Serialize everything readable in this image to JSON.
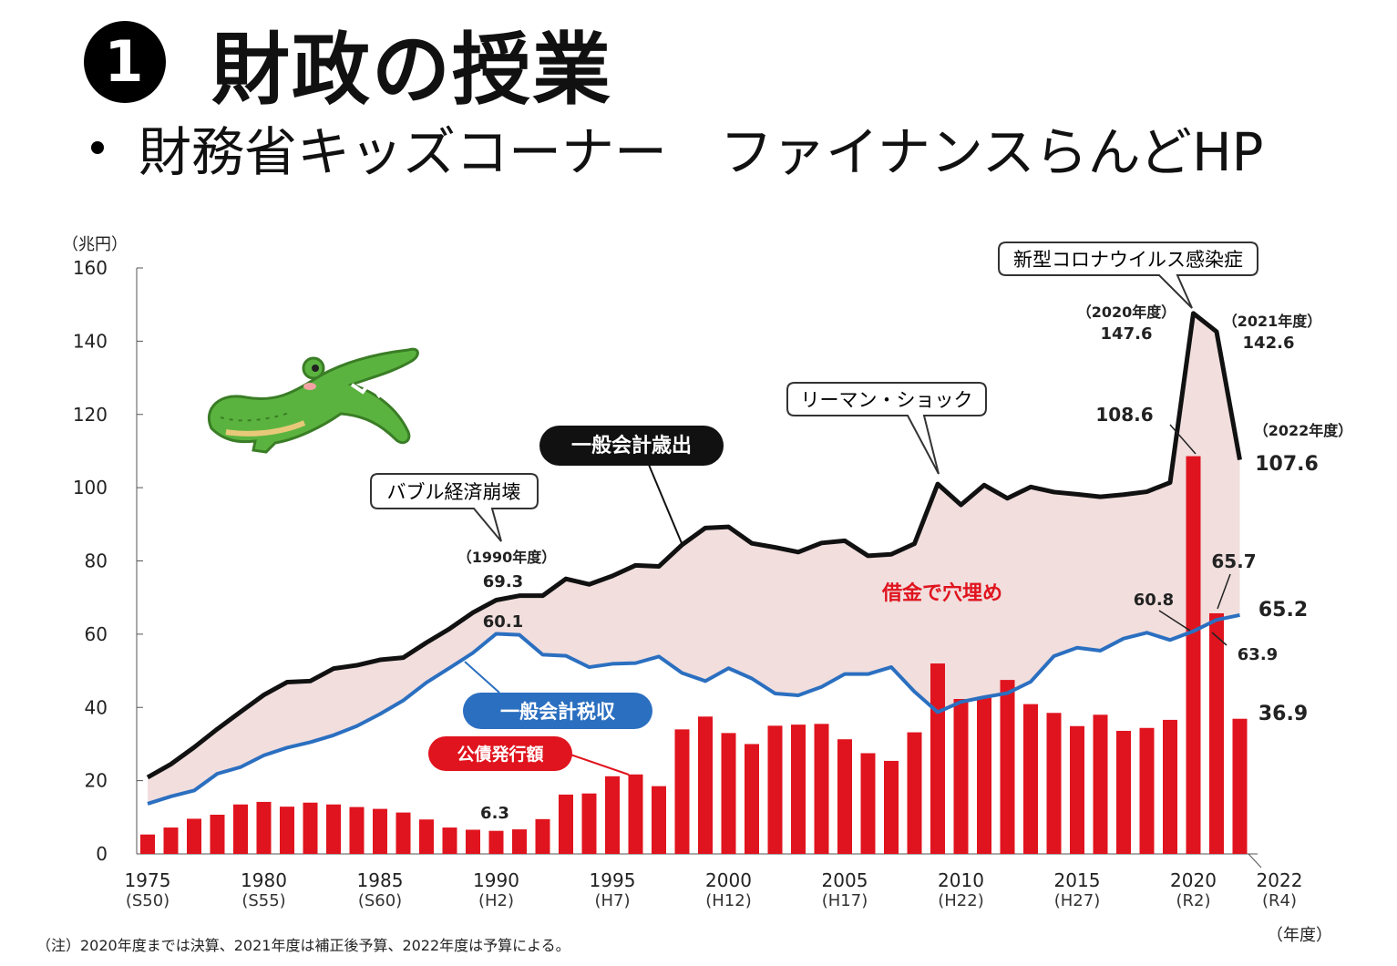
{
  "heading": {
    "number": "1",
    "title": "財政の授業"
  },
  "subheading": {
    "text": "財務省キッズコーナー　ファイナンスらんどHP"
  },
  "footnote": "（注）2020年度までは決算、2021年度は補正後予算、2022年度は予算による。",
  "colors": {
    "expenditure": "#111111",
    "tax": "#2b6fc0",
    "bonds": "#e0141e",
    "gap_fill": "#f1dedd",
    "crocodile": "#5bb33f"
  },
  "chart_data": {
    "type": "bar",
    "yunit": "（兆円）",
    "xunit": "（年度）",
    "ylim": [
      0,
      160
    ],
    "yticks": [
      0,
      20,
      40,
      60,
      80,
      100,
      120,
      140,
      160
    ],
    "x": [
      1975,
      1976,
      1977,
      1978,
      1979,
      1980,
      1981,
      1982,
      1983,
      1984,
      1985,
      1986,
      1987,
      1988,
      1989,
      1990,
      1991,
      1992,
      1993,
      1994,
      1995,
      1996,
      1997,
      1998,
      1999,
      2000,
      2001,
      2002,
      2003,
      2004,
      2005,
      2006,
      2007,
      2008,
      2009,
      2010,
      2011,
      2012,
      2013,
      2014,
      2015,
      2016,
      2017,
      2018,
      2019,
      2020,
      2021,
      2022
    ],
    "xticks": [
      {
        "year": 1975,
        "label": "1975",
        "era": "(S50)"
      },
      {
        "year": 1980,
        "label": "1980",
        "era": "(S55)"
      },
      {
        "year": 1985,
        "label": "1985",
        "era": "(S60)"
      },
      {
        "year": 1990,
        "label": "1990",
        "era": "(H2)"
      },
      {
        "year": 1995,
        "label": "1995",
        "era": "(H7)"
      },
      {
        "year": 2000,
        "label": "2000",
        "era": "(H12)"
      },
      {
        "year": 2005,
        "label": "2005",
        "era": "(H17)"
      },
      {
        "year": 2010,
        "label": "2010",
        "era": "(H22)"
      },
      {
        "year": 2015,
        "label": "2015",
        "era": "(H27)"
      },
      {
        "year": 2020,
        "label": "2020",
        "era": "(R2)"
      },
      {
        "year": 2022,
        "label": "2022",
        "era": "(R4)"
      }
    ],
    "series": [
      {
        "name": "一般会計歳出",
        "type": "line",
        "values": [
          20.9,
          24.5,
          29.1,
          34.1,
          38.8,
          43.4,
          46.9,
          47.2,
          50.6,
          51.5,
          53.0,
          53.6,
          57.7,
          61.5,
          65.9,
          69.3,
          70.5,
          70.5,
          75.1,
          73.6,
          75.9,
          78.8,
          78.5,
          84.4,
          89.0,
          89.3,
          84.8,
          83.7,
          82.4,
          84.9,
          85.5,
          81.4,
          81.8,
          84.7,
          101.0,
          95.3,
          100.7,
          97.1,
          100.2,
          98.8,
          98.2,
          97.5,
          98.1,
          98.9,
          101.4,
          147.6,
          142.6,
          107.6
        ]
      },
      {
        "name": "一般会計税収",
        "type": "line",
        "values": [
          13.7,
          15.7,
          17.3,
          21.9,
          23.7,
          26.9,
          29.0,
          30.5,
          32.4,
          34.9,
          38.2,
          41.9,
          46.8,
          50.8,
          54.9,
          60.1,
          59.8,
          54.4,
          54.1,
          51.0,
          51.9,
          52.1,
          53.9,
          49.4,
          47.2,
          50.7,
          47.9,
          43.8,
          43.3,
          45.6,
          49.1,
          49.1,
          51.0,
          44.3,
          38.7,
          41.5,
          42.8,
          43.9,
          47.0,
          54.0,
          56.3,
          55.5,
          58.8,
          60.4,
          58.4,
          60.8,
          63.9,
          65.2
        ]
      },
      {
        "name": "公債発行額",
        "type": "bar",
        "values": [
          5.3,
          7.2,
          9.6,
          10.7,
          13.5,
          14.2,
          12.9,
          14.0,
          13.5,
          12.8,
          12.3,
          11.3,
          9.4,
          7.2,
          6.6,
          6.3,
          6.7,
          9.5,
          16.2,
          16.5,
          21.2,
          21.7,
          18.5,
          34.0,
          37.5,
          33.0,
          30.0,
          35.0,
          35.3,
          35.5,
          31.3,
          27.5,
          25.4,
          33.2,
          52.0,
          42.3,
          42.8,
          47.5,
          40.9,
          38.5,
          34.9,
          38.0,
          33.6,
          34.4,
          36.6,
          108.6,
          65.7,
          36.9
        ]
      }
    ],
    "annotations": {
      "bubble": "バブル経済崩壊",
      "lehman": "リーマン・ショック",
      "corona": "新型コロナウイルス感染症",
      "gap": "借金で穴埋め",
      "fy1990": "（1990年度）",
      "fy2020": "（2020年度）",
      "fy2021": "（2021年度）",
      "fy2022": "（2022年度）",
      "exp1990": "69.3",
      "tax1990": "60.1",
      "bond1990": "6.3",
      "exp2020": "147.6",
      "exp2021": "142.6",
      "exp2022": "107.6",
      "bond2020": "108.6",
      "bond2021": "65.7",
      "tax2020": "60.8",
      "tax2021": "63.9",
      "tax2022": "65.2",
      "bond2022": "36.9"
    }
  }
}
